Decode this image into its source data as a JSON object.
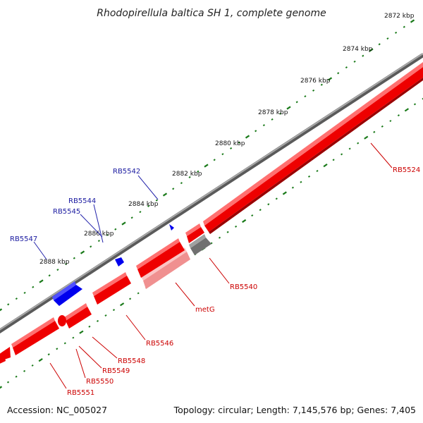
{
  "title": "Rhodopirellula baltica SH 1, complete genome",
  "footer": {
    "accession": "Accession: NC_005027",
    "summary": "Topology: circular; Length: 7,145,576 bp; Genes: 7,405"
  },
  "colors": {
    "forward_gene": "#0000ee",
    "reverse_gene": "#ee0000",
    "rna_gene": "#f09090",
    "other_feature": "#707070",
    "backbone": "#8a8a8a",
    "tick": "#1a7a1a",
    "forward_label": "#1a1aa0",
    "reverse_label": "#cc0000"
  },
  "scale_labels": [
    "2872 kbp",
    "2874 kbp",
    "2876 kbp",
    "2878 kbp",
    "2880 kbp",
    "2882 kbp",
    "2884 kbp",
    "2886 kbp",
    "2888 kbp"
  ],
  "forward_genes": [
    "RB5542",
    "RB5544",
    "RB5545",
    "RB5547"
  ],
  "reverse_genes": [
    "RB5524",
    "RB5540",
    "metG",
    "RB5546",
    "RB5548",
    "RB5549",
    "RB5550",
    "RB5551"
  ]
}
